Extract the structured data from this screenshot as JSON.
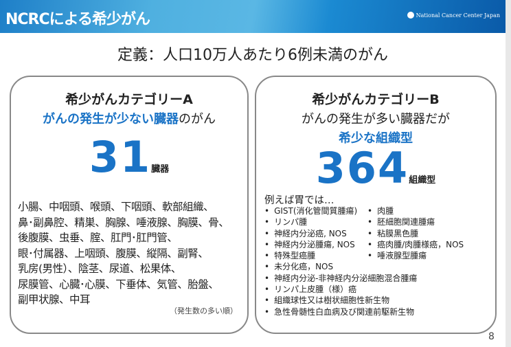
{
  "header": {
    "title": "NCRCによる希少がん",
    "logo_text": "National Cancer Center Japan"
  },
  "definition": "定義：人口10万人あたり6例未満のがん",
  "categoryA": {
    "title": "希少がんカテゴリーA",
    "subtitle_blue": "がんの発生が少ない臓器",
    "subtitle_rest": "のがん",
    "count": "31",
    "unit": "臓器",
    "organs": [
      "小腸、中咽頭、喉頭、下咽頭、軟部組織、",
      "鼻･副鼻腔、精巣、胸腺、唾液腺、胸膜、骨、",
      "後腹膜、虫垂、腟、肛門･肛門管、",
      "眼･付属器、上咽頭、腹膜、縦隔、副腎、",
      "乳房(男性）、陰茎、尿道、松果体、",
      "尿膜管、心臓･心膜、下垂体、気管、胎盤、",
      "副甲状腺、中耳"
    ],
    "note": "（発生数の多い順）"
  },
  "categoryB": {
    "title": "希少がんカテゴリーB",
    "subtitle_line1": "がんの発生が多い臓器だが",
    "subtitle_blue": "希少な組織型",
    "count": "364",
    "unit": "組織型",
    "example_label": "例えば胃では…",
    "list_left": [
      "GIST(消化管間質腫瘍)",
      "リンパ腫",
      "神経内分泌癌, NOS",
      "神経内分泌腫瘍, NOS",
      "特殊型癌腫",
      "未分化癌，NOS",
      "神経内分泌-非神経内分泌細胞混合腫瘍",
      "リンパ上皮腫（様）癌",
      "組織球性又は樹状細胞性新生物",
      "急性骨髄性白血病及び関連前駆新生物"
    ],
    "list_right": [
      "肉腫",
      "胚細胞関連腫瘍",
      "粘膜黒色腫",
      "癌肉腫/肉腫様癌，NOS",
      "唾液腺型腫瘍"
    ]
  },
  "page_number": "8",
  "colors": {
    "accent": "#1a73c6",
    "header": "#1e7fc8"
  }
}
